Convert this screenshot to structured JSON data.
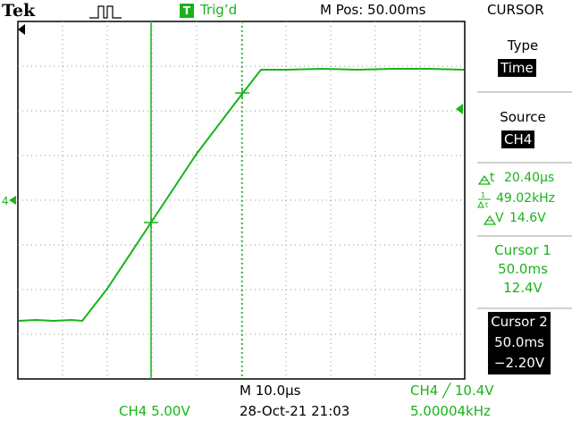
{
  "header": {
    "brand": "Tek",
    "trigger_badge": "T",
    "trigger_status": "Trig’d",
    "m_pos": "M Pos: 50.00ms",
    "menu_title": "CURSOR"
  },
  "menu": {
    "type_label": "Type",
    "type_value": "Time",
    "source_label": "Source",
    "source_value": "CH4",
    "delta_t": "20.40µs",
    "freq": "49.02kHz",
    "delta_v": "14.6V",
    "cursor1_label": "Cursor 1",
    "cursor1_time": "50.0ms",
    "cursor1_volt": "12.4V",
    "cursor2_label": "Cursor 2",
    "cursor2_time": "50.0ms",
    "cursor2_volt": "−2.20V"
  },
  "footer": {
    "ch_scale": "CH4  5.00V",
    "timebase": "M 10.0µs",
    "datetime": "28-Oct-21 21:03",
    "trigger_setting": "CH4 ╱ 10.4V",
    "trigger_freq": "5.00004kHz"
  },
  "colors": {
    "trace": "#19b319",
    "grid": "#909090",
    "frame": "#000000"
  },
  "icons": {
    "pulse": "pulse-shape-icon",
    "trigger_pos": "trigger-position-marker-icon",
    "ch4_ground": "ch4-ground-marker-icon",
    "trigger_level": "trigger-level-marker-icon",
    "delta_t": "delta-icon",
    "one_over_delta_t": "frequency-icon",
    "delta_v": "delta-icon"
  }
}
